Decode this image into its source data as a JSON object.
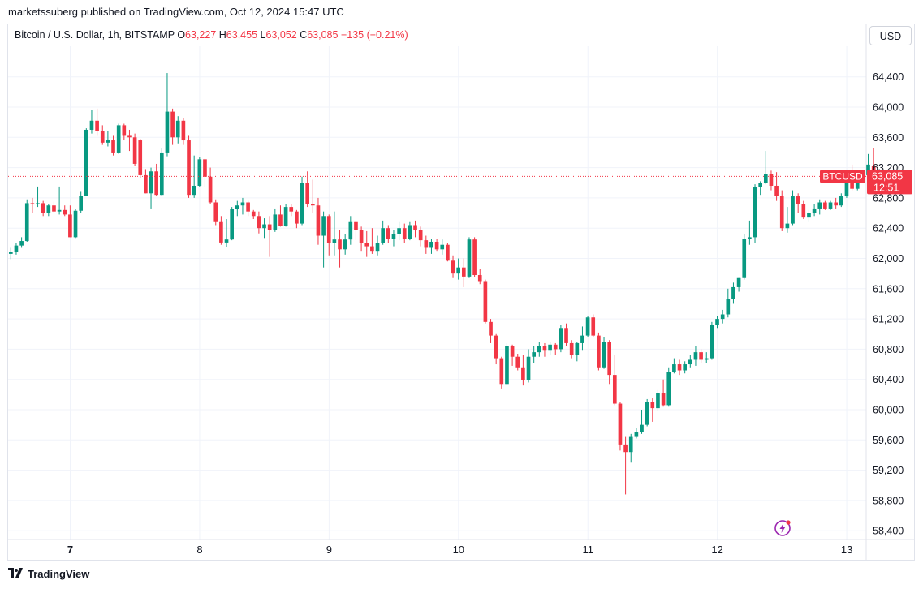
{
  "publisher_line": "marketssuberg published on TradingView.com, Oct 12, 2024 15:47 UTC",
  "legend": {
    "symbol": "Bitcoin / U.S. Dollar, 1h, BITSTAMP",
    "o_label": "O",
    "o_value": "63,227",
    "h_label": "H",
    "h_value": "63,455",
    "l_label": "L",
    "l_value": "63,052",
    "c_label": "C",
    "c_value": "63,085",
    "change": "−135 (−0.21%)"
  },
  "currency_button": "USD",
  "footer_brand": "TradingView",
  "price_tag": {
    "symbol": "BTCUSD",
    "price": "63,085",
    "countdown": "12:51"
  },
  "colors": {
    "up": "#089981",
    "down": "#f23645",
    "grid": "#f0f3fa",
    "last_price_line": "#f23645"
  },
  "icons": {
    "footer": "tradingview-logo-icon",
    "alert": "lightning-bolt-icon"
  },
  "chart_data": {
    "type": "candlestick",
    "timeframe": "1h",
    "x_tick_labels": [
      "7",
      "8",
      "9",
      "10",
      "11",
      "12",
      "13"
    ],
    "y_tick_labels": [
      "58,400",
      "58,800",
      "59,200",
      "59,600",
      "60,000",
      "60,400",
      "60,800",
      "61,200",
      "61,600",
      "62,000",
      "62,400",
      "62,800",
      "63,200",
      "63,600",
      "64,000",
      "64,400"
    ],
    "ylim": [
      58250,
      64800
    ],
    "x_range_days": [
      6.52,
      13.15
    ],
    "last_price": 63085,
    "grid": true,
    "candles": [
      {
        "o": 62060,
        "h": 62140,
        "l": 61990,
        "c": 62090
      },
      {
        "o": 62090,
        "h": 62200,
        "l": 62050,
        "c": 62170
      },
      {
        "o": 62170,
        "h": 62280,
        "l": 62140,
        "c": 62230
      },
      {
        "o": 62230,
        "h": 62780,
        "l": 62220,
        "c": 62730
      },
      {
        "o": 62730,
        "h": 62800,
        "l": 62600,
        "c": 62720
      },
      {
        "o": 62720,
        "h": 62950,
        "l": 62680,
        "c": 62730
      },
      {
        "o": 62730,
        "h": 62760,
        "l": 62560,
        "c": 62600
      },
      {
        "o": 62600,
        "h": 62720,
        "l": 62560,
        "c": 62700
      },
      {
        "o": 62700,
        "h": 62750,
        "l": 62600,
        "c": 62620
      },
      {
        "o": 62620,
        "h": 62950,
        "l": 62580,
        "c": 62640
      },
      {
        "o": 62640,
        "h": 62700,
        "l": 62560,
        "c": 62580
      },
      {
        "o": 62580,
        "h": 62700,
        "l": 62280,
        "c": 62280
      },
      {
        "o": 62280,
        "h": 62650,
        "l": 62270,
        "c": 62630
      },
      {
        "o": 62630,
        "h": 62880,
        "l": 62600,
        "c": 62830
      },
      {
        "o": 62830,
        "h": 63720,
        "l": 62830,
        "c": 63700
      },
      {
        "o": 63700,
        "h": 63960,
        "l": 63650,
        "c": 63820
      },
      {
        "o": 63820,
        "h": 63980,
        "l": 63620,
        "c": 63680
      },
      {
        "o": 63680,
        "h": 63760,
        "l": 63500,
        "c": 63530
      },
      {
        "o": 63530,
        "h": 63680,
        "l": 63480,
        "c": 63560
      },
      {
        "o": 63560,
        "h": 63620,
        "l": 63360,
        "c": 63400
      },
      {
        "o": 63400,
        "h": 63780,
        "l": 63380,
        "c": 63760
      },
      {
        "o": 63760,
        "h": 63780,
        "l": 63560,
        "c": 63620
      },
      {
        "o": 63620,
        "h": 63700,
        "l": 63420,
        "c": 63600
      },
      {
        "o": 63600,
        "h": 63650,
        "l": 63220,
        "c": 63250
      },
      {
        "o": 63560,
        "h": 63580,
        "l": 63060,
        "c": 63100
      },
      {
        "o": 63100,
        "h": 63180,
        "l": 62860,
        "c": 62860
      },
      {
        "o": 62860,
        "h": 63200,
        "l": 62660,
        "c": 63150
      },
      {
        "o": 63150,
        "h": 63250,
        "l": 62820,
        "c": 62840
      },
      {
        "o": 62840,
        "h": 63460,
        "l": 62830,
        "c": 63400
      },
      {
        "o": 63400,
        "h": 64450,
        "l": 63350,
        "c": 63940
      },
      {
        "o": 63940,
        "h": 63980,
        "l": 63500,
        "c": 63600
      },
      {
        "o": 63600,
        "h": 63880,
        "l": 63520,
        "c": 63820
      },
      {
        "o": 63820,
        "h": 63860,
        "l": 63500,
        "c": 63560
      },
      {
        "o": 63560,
        "h": 63620,
        "l": 62800,
        "c": 62840
      },
      {
        "o": 62840,
        "h": 63360,
        "l": 62800,
        "c": 62960
      },
      {
        "o": 62960,
        "h": 63340,
        "l": 62940,
        "c": 63310
      },
      {
        "o": 63310,
        "h": 63320,
        "l": 62940,
        "c": 63080
      },
      {
        "o": 63080,
        "h": 63200,
        "l": 62720,
        "c": 62740
      },
      {
        "o": 62740,
        "h": 62780,
        "l": 62440,
        "c": 62480
      },
      {
        "o": 62480,
        "h": 62560,
        "l": 62180,
        "c": 62210
      },
      {
        "o": 62210,
        "h": 62520,
        "l": 62150,
        "c": 62250
      },
      {
        "o": 62250,
        "h": 62680,
        "l": 62240,
        "c": 62650
      },
      {
        "o": 62650,
        "h": 62760,
        "l": 62560,
        "c": 62700
      },
      {
        "o": 62700,
        "h": 62800,
        "l": 62580,
        "c": 62740
      },
      {
        "o": 62740,
        "h": 62760,
        "l": 62560,
        "c": 62620
      },
      {
        "o": 62620,
        "h": 62640,
        "l": 62520,
        "c": 62560
      },
      {
        "o": 62560,
        "h": 62620,
        "l": 62330,
        "c": 62400
      },
      {
        "o": 62400,
        "h": 62530,
        "l": 62270,
        "c": 62450
      },
      {
        "o": 62450,
        "h": 62560,
        "l": 62020,
        "c": 62370
      },
      {
        "o": 62370,
        "h": 62660,
        "l": 62350,
        "c": 62580
      },
      {
        "o": 62580,
        "h": 62700,
        "l": 62420,
        "c": 62430
      },
      {
        "o": 62430,
        "h": 62720,
        "l": 62420,
        "c": 62680
      },
      {
        "o": 62680,
        "h": 62720,
        "l": 62560,
        "c": 62620
      },
      {
        "o": 62620,
        "h": 62640,
        "l": 62400,
        "c": 62460
      },
      {
        "o": 62460,
        "h": 63080,
        "l": 62440,
        "c": 63000
      },
      {
        "o": 63000,
        "h": 63150,
        "l": 62680,
        "c": 62720
      },
      {
        "o": 62720,
        "h": 63040,
        "l": 62600,
        "c": 62700
      },
      {
        "o": 62700,
        "h": 62800,
        "l": 62180,
        "c": 62300
      },
      {
        "o": 62300,
        "h": 62620,
        "l": 61880,
        "c": 62560
      },
      {
        "o": 62560,
        "h": 62580,
        "l": 62040,
        "c": 62200
      },
      {
        "o": 62200,
        "h": 62620,
        "l": 62040,
        "c": 62250
      },
      {
        "o": 62250,
        "h": 62380,
        "l": 61880,
        "c": 62120
      },
      {
        "o": 62120,
        "h": 62320,
        "l": 62050,
        "c": 62250
      },
      {
        "o": 62250,
        "h": 62560,
        "l": 62180,
        "c": 62480
      },
      {
        "o": 62480,
        "h": 62500,
        "l": 62240,
        "c": 62380
      },
      {
        "o": 62380,
        "h": 62420,
        "l": 62100,
        "c": 62200
      },
      {
        "o": 62200,
        "h": 62360,
        "l": 62020,
        "c": 62160
      },
      {
        "o": 62160,
        "h": 62400,
        "l": 62060,
        "c": 62100
      },
      {
        "o": 62100,
        "h": 62300,
        "l": 62040,
        "c": 62200
      },
      {
        "o": 62200,
        "h": 62500,
        "l": 62180,
        "c": 62400
      },
      {
        "o": 62400,
        "h": 62440,
        "l": 62200,
        "c": 62260
      },
      {
        "o": 62260,
        "h": 62380,
        "l": 62160,
        "c": 62320
      },
      {
        "o": 62320,
        "h": 62480,
        "l": 62240,
        "c": 62400
      },
      {
        "o": 62400,
        "h": 62460,
        "l": 62200,
        "c": 62260
      },
      {
        "o": 62260,
        "h": 62480,
        "l": 62240,
        "c": 62440
      },
      {
        "o": 62440,
        "h": 62500,
        "l": 62280,
        "c": 62380
      },
      {
        "o": 62380,
        "h": 62420,
        "l": 62160,
        "c": 62240
      },
      {
        "o": 62240,
        "h": 62300,
        "l": 62060,
        "c": 62140
      },
      {
        "o": 62140,
        "h": 62260,
        "l": 62060,
        "c": 62220
      },
      {
        "o": 62220,
        "h": 62260,
        "l": 62100,
        "c": 62120
      },
      {
        "o": 62120,
        "h": 62250,
        "l": 62050,
        "c": 62180
      },
      {
        "o": 62180,
        "h": 62200,
        "l": 61960,
        "c": 61970
      },
      {
        "o": 61970,
        "h": 62040,
        "l": 61740,
        "c": 61800
      },
      {
        "o": 61800,
        "h": 62000,
        "l": 61720,
        "c": 61880
      },
      {
        "o": 61880,
        "h": 62000,
        "l": 61620,
        "c": 61760
      },
      {
        "o": 61760,
        "h": 62280,
        "l": 61740,
        "c": 62250
      },
      {
        "o": 62250,
        "h": 62280,
        "l": 61750,
        "c": 61780
      },
      {
        "o": 61780,
        "h": 61860,
        "l": 61660,
        "c": 61700
      },
      {
        "o": 61700,
        "h": 61720,
        "l": 61140,
        "c": 61160
      },
      {
        "o": 61160,
        "h": 61200,
        "l": 60880,
        "c": 60980
      },
      {
        "o": 60980,
        "h": 61000,
        "l": 60600,
        "c": 60680
      },
      {
        "o": 60680,
        "h": 60700,
        "l": 60280,
        "c": 60340
      },
      {
        "o": 60340,
        "h": 60880,
        "l": 60320,
        "c": 60840
      },
      {
        "o": 60840,
        "h": 60860,
        "l": 60580,
        "c": 60700
      },
      {
        "o": 60700,
        "h": 60740,
        "l": 60520,
        "c": 60560
      },
      {
        "o": 60560,
        "h": 60720,
        "l": 60320,
        "c": 60390
      },
      {
        "o": 60390,
        "h": 60800,
        "l": 60360,
        "c": 60700
      },
      {
        "o": 60700,
        "h": 60840,
        "l": 60620,
        "c": 60760
      },
      {
        "o": 60760,
        "h": 60900,
        "l": 60700,
        "c": 60840
      },
      {
        "o": 60840,
        "h": 60880,
        "l": 60700,
        "c": 60780
      },
      {
        "o": 60780,
        "h": 60900,
        "l": 60720,
        "c": 60860
      },
      {
        "o": 60860,
        "h": 60880,
        "l": 60720,
        "c": 60800
      },
      {
        "o": 60800,
        "h": 61120,
        "l": 60760,
        "c": 61080
      },
      {
        "o": 61080,
        "h": 61140,
        "l": 60840,
        "c": 60880
      },
      {
        "o": 60880,
        "h": 60920,
        "l": 60680,
        "c": 60720
      },
      {
        "o": 60720,
        "h": 60900,
        "l": 60640,
        "c": 60880
      },
      {
        "o": 60880,
        "h": 61100,
        "l": 60780,
        "c": 60980
      },
      {
        "o": 60980,
        "h": 61240,
        "l": 60960,
        "c": 61220
      },
      {
        "o": 61220,
        "h": 61260,
        "l": 60960,
        "c": 60980
      },
      {
        "o": 60980,
        "h": 61020,
        "l": 60520,
        "c": 60560
      },
      {
        "o": 60560,
        "h": 60960,
        "l": 60540,
        "c": 60900
      },
      {
        "o": 60900,
        "h": 60920,
        "l": 60340,
        "c": 60460
      },
      {
        "o": 60460,
        "h": 60720,
        "l": 60060,
        "c": 60080
      },
      {
        "o": 60080,
        "h": 60100,
        "l": 59460,
        "c": 59540
      },
      {
        "o": 59540,
        "h": 59640,
        "l": 58880,
        "c": 59440
      },
      {
        "o": 59440,
        "h": 59680,
        "l": 59300,
        "c": 59640
      },
      {
        "o": 59640,
        "h": 59760,
        "l": 59620,
        "c": 59700
      },
      {
        "o": 59700,
        "h": 60000,
        "l": 59680,
        "c": 59800
      },
      {
        "o": 59800,
        "h": 60140,
        "l": 59780,
        "c": 60100
      },
      {
        "o": 60100,
        "h": 60160,
        "l": 59840,
        "c": 60020
      },
      {
        "o": 60020,
        "h": 60260,
        "l": 59980,
        "c": 60220
      },
      {
        "o": 60220,
        "h": 60400,
        "l": 60040,
        "c": 60060
      },
      {
        "o": 60060,
        "h": 60560,
        "l": 60040,
        "c": 60500
      },
      {
        "o": 60500,
        "h": 60680,
        "l": 60480,
        "c": 60600
      },
      {
        "o": 60600,
        "h": 60660,
        "l": 60460,
        "c": 60520
      },
      {
        "o": 60520,
        "h": 60640,
        "l": 60480,
        "c": 60600
      },
      {
        "o": 60600,
        "h": 60720,
        "l": 60560,
        "c": 60660
      },
      {
        "o": 60660,
        "h": 60840,
        "l": 60580,
        "c": 60760
      },
      {
        "o": 60760,
        "h": 60800,
        "l": 60620,
        "c": 60660
      },
      {
        "o": 60660,
        "h": 60760,
        "l": 60620,
        "c": 60680
      },
      {
        "o": 60680,
        "h": 61160,
        "l": 60660,
        "c": 61120
      },
      {
        "o": 61120,
        "h": 61240,
        "l": 61080,
        "c": 61200
      },
      {
        "o": 61200,
        "h": 61320,
        "l": 61140,
        "c": 61260
      },
      {
        "o": 61260,
        "h": 61600,
        "l": 61220,
        "c": 61460
      },
      {
        "o": 61460,
        "h": 61680,
        "l": 61400,
        "c": 61620
      },
      {
        "o": 61620,
        "h": 61740,
        "l": 61560,
        "c": 61740
      },
      {
        "o": 61740,
        "h": 62320,
        "l": 61720,
        "c": 62260
      },
      {
        "o": 62260,
        "h": 62500,
        "l": 62180,
        "c": 62280
      },
      {
        "o": 62280,
        "h": 62980,
        "l": 62200,
        "c": 62940
      },
      {
        "o": 62940,
        "h": 63020,
        "l": 62840,
        "c": 63000
      },
      {
        "o": 63000,
        "h": 63420,
        "l": 62980,
        "c": 63110
      },
      {
        "o": 63110,
        "h": 63160,
        "l": 62900,
        "c": 62960
      },
      {
        "o": 62960,
        "h": 63140,
        "l": 62760,
        "c": 62830
      },
      {
        "o": 62830,
        "h": 62900,
        "l": 62360,
        "c": 62400
      },
      {
        "o": 62400,
        "h": 62680,
        "l": 62340,
        "c": 62460
      },
      {
        "o": 62460,
        "h": 62900,
        "l": 62440,
        "c": 62820
      },
      {
        "o": 62820,
        "h": 62860,
        "l": 62600,
        "c": 62720
      },
      {
        "o": 62720,
        "h": 62760,
        "l": 62520,
        "c": 62540
      },
      {
        "o": 62540,
        "h": 62640,
        "l": 62480,
        "c": 62600
      },
      {
        "o": 62600,
        "h": 62720,
        "l": 62560,
        "c": 62660
      },
      {
        "o": 62660,
        "h": 62780,
        "l": 62580,
        "c": 62740
      },
      {
        "o": 62740,
        "h": 62760,
        "l": 62640,
        "c": 62660
      },
      {
        "o": 62660,
        "h": 62760,
        "l": 62640,
        "c": 62740
      },
      {
        "o": 62740,
        "h": 62800,
        "l": 62660,
        "c": 62700
      },
      {
        "o": 62700,
        "h": 62860,
        "l": 62680,
        "c": 62820
      },
      {
        "o": 62820,
        "h": 63060,
        "l": 62800,
        "c": 63030
      },
      {
        "o": 63030,
        "h": 63240,
        "l": 62900,
        "c": 62920
      },
      {
        "o": 62920,
        "h": 63100,
        "l": 62900,
        "c": 63060
      },
      {
        "o": 63060,
        "h": 63130,
        "l": 63020,
        "c": 63100
      },
      {
        "o": 63100,
        "h": 63380,
        "l": 63060,
        "c": 63240
      },
      {
        "o": 63227,
        "h": 63455,
        "l": 63052,
        "c": 63085
      }
    ]
  }
}
